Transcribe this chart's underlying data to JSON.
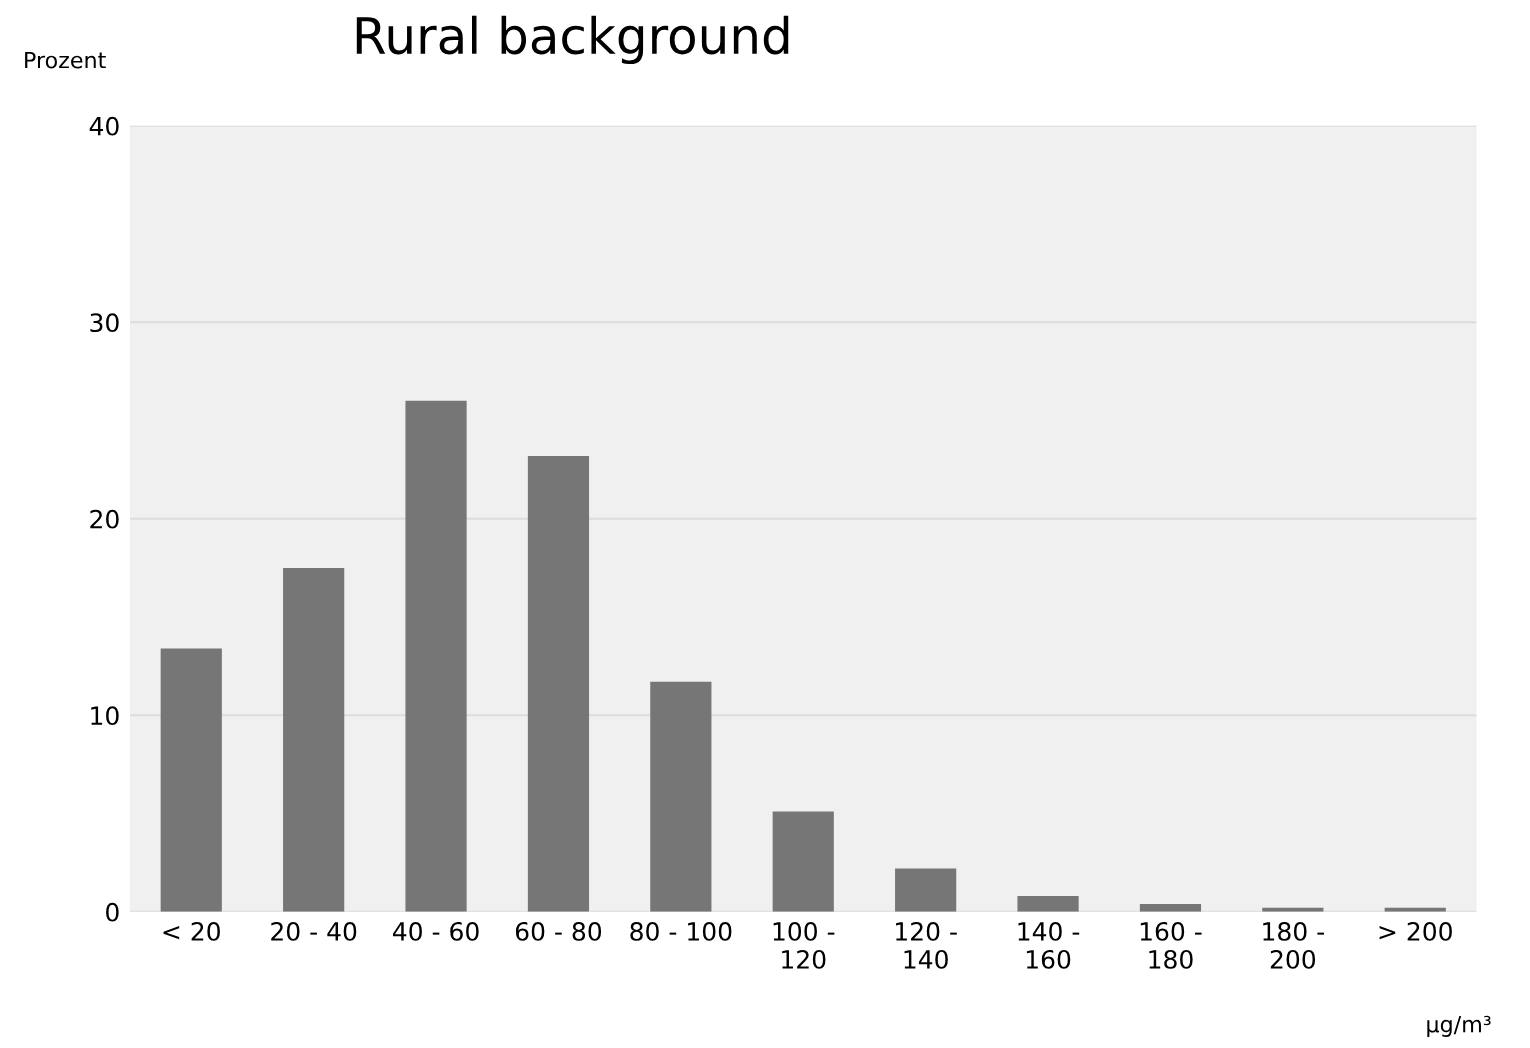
{
  "chart_data": {
    "type": "bar",
    "title": "Rural background",
    "ylabel": "Prozent",
    "xlabel": "µg/m³",
    "categories": [
      "< 20",
      "20 - 40",
      "40 - 60",
      "60 - 80",
      "80 - 100",
      "100 -\n120",
      "120 -\n140",
      "140 -\n160",
      "160 -\n180",
      "180 -\n200",
      "> 200"
    ],
    "values": [
      13.4,
      17.5,
      26,
      23.2,
      11.7,
      5.1,
      2.2,
      0.8,
      0.4,
      0.2,
      0.2
    ],
    "color": "#767676",
    "ylim": [
      0,
      40
    ],
    "yticks": [
      0,
      10,
      20,
      30,
      40
    ],
    "grid": "y"
  }
}
